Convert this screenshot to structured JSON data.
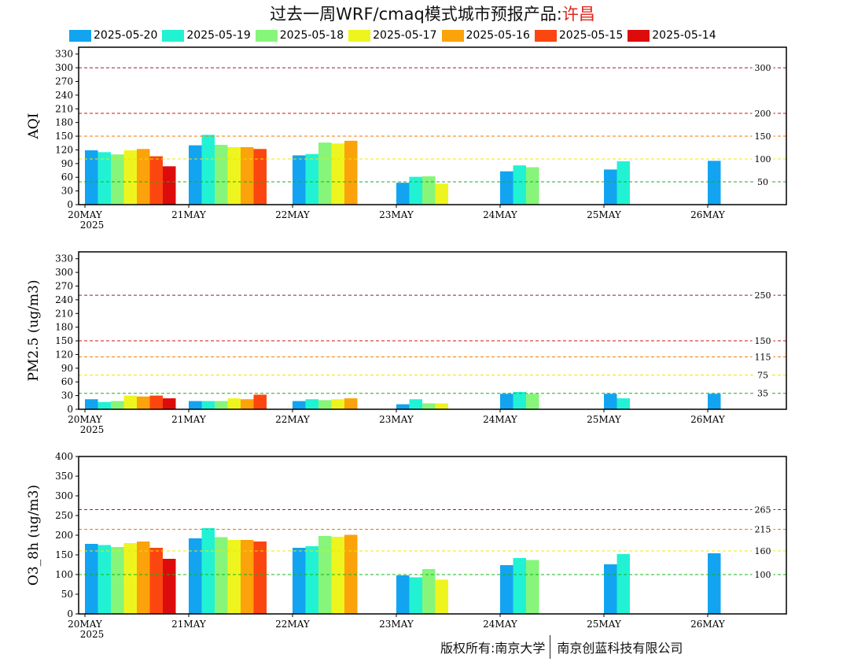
{
  "title": {
    "prefix": "过去一周WRF/cmaq模式城市预报产品:",
    "city": "许昌"
  },
  "legend": [
    {
      "label": "2025-05-20",
      "color": "#12a4f0"
    },
    {
      "label": "2025-05-19",
      "color": "#22f2d4"
    },
    {
      "label": "2025-05-18",
      "color": "#86f57a"
    },
    {
      "label": "2025-05-17",
      "color": "#eef51e"
    },
    {
      "label": "2025-05-16",
      "color": "#fca20a"
    },
    {
      "label": "2025-05-15",
      "color": "#fc4610"
    },
    {
      "label": "2025-05-14",
      "color": "#dc0c0c"
    }
  ],
  "footer": {
    "left": "版权所有:南京大学",
    "right": "南京创蓝科技有限公司"
  },
  "chart_data": [
    {
      "type": "bar",
      "ylabel": "AQI",
      "ylim": [
        0,
        345
      ],
      "yticks": [
        0,
        30,
        60,
        90,
        120,
        150,
        180,
        210,
        240,
        270,
        300,
        330
      ],
      "categories": [
        "20MAY",
        "21MAY",
        "22MAY",
        "23MAY",
        "24MAY",
        "25MAY",
        "26MAY"
      ],
      "year_label": "2025",
      "series": [
        {
          "name": "2025-05-20",
          "values": [
            119,
            130,
            108,
            48,
            73,
            77,
            96
          ]
        },
        {
          "name": "2025-05-19",
          "values": [
            115,
            153,
            111,
            61,
            86,
            95,
            null
          ]
        },
        {
          "name": "2025-05-18",
          "values": [
            110,
            131,
            136,
            62,
            82,
            null,
            null
          ]
        },
        {
          "name": "2025-05-17",
          "values": [
            119,
            126,
            134,
            46,
            null,
            null,
            null
          ]
        },
        {
          "name": "2025-05-16",
          "values": [
            122,
            126,
            140,
            null,
            null,
            null,
            null
          ]
        },
        {
          "name": "2025-05-15",
          "values": [
            106,
            122,
            null,
            null,
            null,
            null,
            null
          ]
        },
        {
          "name": "2025-05-14",
          "values": [
            84,
            null,
            null,
            null,
            null,
            null,
            null
          ]
        }
      ],
      "thresholds": [
        {
          "value": 300,
          "label": "300",
          "color": "#a0105a"
        },
        {
          "value": 200,
          "label": "200",
          "color": "#c81414"
        },
        {
          "value": 150,
          "label": "150",
          "color": "#f07800"
        },
        {
          "value": 100,
          "label": "100",
          "color": "#e8e800"
        },
        {
          "value": 50,
          "label": "50",
          "color": "#14b414"
        }
      ]
    },
    {
      "type": "bar",
      "ylabel": "PM2.5 (ug/m3)",
      "ylim": [
        0,
        345
      ],
      "yticks": [
        0,
        30,
        60,
        90,
        120,
        150,
        180,
        210,
        240,
        270,
        300,
        330
      ],
      "categories": [
        "20MAY",
        "21MAY",
        "22MAY",
        "23MAY",
        "24MAY",
        "25MAY",
        "26MAY"
      ],
      "year_label": "2025",
      "series": [
        {
          "name": "2025-05-20",
          "values": [
            22,
            18,
            18,
            11,
            34,
            34,
            34
          ]
        },
        {
          "name": "2025-05-19",
          "values": [
            16,
            18,
            22,
            22,
            38,
            24,
            null
          ]
        },
        {
          "name": "2025-05-18",
          "values": [
            18,
            18,
            20,
            13,
            34,
            null,
            null
          ]
        },
        {
          "name": "2025-05-17",
          "values": [
            30,
            24,
            22,
            13,
            null,
            null,
            null
          ]
        },
        {
          "name": "2025-05-16",
          "values": [
            28,
            22,
            24,
            null,
            null,
            null,
            null
          ]
        },
        {
          "name": "2025-05-15",
          "values": [
            30,
            32,
            null,
            null,
            null,
            null,
            null
          ]
        },
        {
          "name": "2025-05-14",
          "values": [
            24,
            null,
            null,
            null,
            null,
            null,
            null
          ]
        }
      ],
      "thresholds": [
        {
          "value": 250,
          "label": "250",
          "color": "#a0105a"
        },
        {
          "value": 150,
          "label": "150",
          "color": "#c81414"
        },
        {
          "value": 115,
          "label": "115",
          "color": "#f07800"
        },
        {
          "value": 75,
          "label": "75",
          "color": "#e8e800"
        },
        {
          "value": 35,
          "label": "35",
          "color": "#14b414"
        }
      ]
    },
    {
      "type": "bar",
      "ylabel": "O3_8h (ug/m3)",
      "ylim": [
        0,
        400
      ],
      "yticks": [
        0,
        50,
        100,
        150,
        200,
        250,
        300,
        350,
        400
      ],
      "categories": [
        "20MAY",
        "21MAY",
        "22MAY",
        "23MAY",
        "24MAY",
        "25MAY",
        "26MAY"
      ],
      "year_label": "2025",
      "series": [
        {
          "name": "2025-05-20",
          "values": [
            178,
            192,
            168,
            98,
            124,
            126,
            154
          ]
        },
        {
          "name": "2025-05-19",
          "values": [
            175,
            218,
            172,
            93,
            142,
            152,
            null
          ]
        },
        {
          "name": "2025-05-18",
          "values": [
            170,
            195,
            198,
            114,
            137,
            null,
            null
          ]
        },
        {
          "name": "2025-05-17",
          "values": [
            180,
            188,
            196,
            87,
            null,
            null,
            null
          ]
        },
        {
          "name": "2025-05-16",
          "values": [
            184,
            188,
            201,
            null,
            null,
            null,
            null
          ]
        },
        {
          "name": "2025-05-15",
          "values": [
            168,
            184,
            null,
            null,
            null,
            null,
            null
          ]
        },
        {
          "name": "2025-05-14",
          "values": [
            140,
            null,
            null,
            null,
            null,
            null,
            null
          ]
        }
      ],
      "thresholds": [
        {
          "value": 265,
          "label": "265",
          "color": "#c81414"
        },
        {
          "value": 215,
          "label": "215",
          "color": "#f07800"
        },
        {
          "value": 160,
          "label": "160",
          "color": "#e8e800"
        },
        {
          "value": 100,
          "label": "100",
          "color": "#14b414"
        }
      ]
    }
  ]
}
